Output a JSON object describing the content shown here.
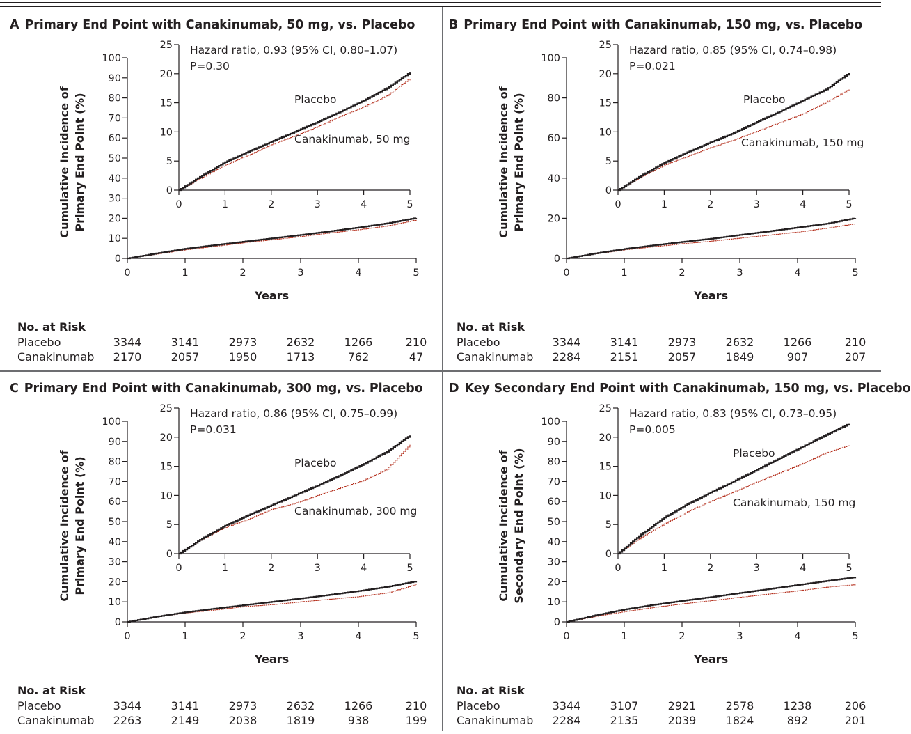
{
  "panels": [
    {
      "letter": "A",
      "title": "Primary End Point with Canakinumab, 50 mg, vs. Placebo",
      "ylabel_lines": [
        "Cumulative Incidence of",
        "Primary End Point (%)"
      ],
      "xlabel": "Years",
      "hazard_text": "Hazard ratio, 0.93 (95% CI, 0.80–1.07)",
      "p_text": "P=0.30",
      "series_labels": [
        "Placebo",
        "Canakinumab, 50 mg"
      ],
      "risk": {
        "title": "No. at Risk",
        "rows": [
          {
            "label": "Placebo",
            "values": [
              "3344",
              "3141",
              "2973",
              "2632",
              "1266",
              "210"
            ]
          },
          {
            "label": "Canakinumab",
            "values": [
              "2170",
              "2057",
              "1950",
              "1713",
              "762",
              "47"
            ]
          }
        ]
      }
    },
    {
      "letter": "B",
      "title": "Primary End Point with Canakinumab, 150 mg, vs. Placebo",
      "ylabel_lines": [
        "Cumulative Incidence of",
        "Primary End Point (%)"
      ],
      "xlabel": "Years",
      "hazard_text": "Hazard ratio, 0.85 (95% CI, 0.74–0.98)",
      "p_text": "P=0.021",
      "series_labels": [
        "Placebo",
        "Canakinumab, 150 mg"
      ],
      "risk": {
        "title": "No. at Risk",
        "rows": [
          {
            "label": "Placebo",
            "values": [
              "3344",
              "3141",
              "2973",
              "2632",
              "1266",
              "210"
            ]
          },
          {
            "label": "Canakinumab",
            "values": [
              "2284",
              "2151",
              "2057",
              "1849",
              "907",
              "207"
            ]
          }
        ]
      }
    },
    {
      "letter": "C",
      "title": "Primary End Point with Canakinumab, 300 mg, vs. Placebo",
      "ylabel_lines": [
        "Cumulative Incidence of",
        "Primary End Point (%)"
      ],
      "xlabel": "Years",
      "hazard_text": "Hazard ratio, 0.86 (95% CI, 0.75–0.99)",
      "p_text": "P=0.031",
      "series_labels": [
        "Placebo",
        "Canakinumab, 300 mg"
      ],
      "risk": {
        "title": "No. at Risk",
        "rows": [
          {
            "label": "Placebo",
            "values": [
              "3344",
              "3141",
              "2973",
              "2632",
              "1266",
              "210"
            ]
          },
          {
            "label": "Canakinumab",
            "values": [
              "2263",
              "2149",
              "2038",
              "1819",
              "938",
              "199"
            ]
          }
        ]
      }
    },
    {
      "letter": "D",
      "title": "Key Secondary End Point with Canakinumab, 150 mg, vs. Placebo",
      "ylabel_lines": [
        "Cumulative Incidence of",
        "Secondary End Point (%)"
      ],
      "xlabel": "Years",
      "hazard_text": "Hazard ratio, 0.83 (95% CI, 0.73–0.95)",
      "p_text": "P=0.005",
      "series_labels": [
        "Placebo",
        "Canakinumab, 150 mg"
      ],
      "risk": {
        "title": "No. at Risk",
        "rows": [
          {
            "label": "Placebo",
            "values": [
              "3344",
              "3107",
              "2921",
              "2578",
              "1238",
              "206"
            ]
          },
          {
            "label": "Canakinumab",
            "values": [
              "2284",
              "2135",
              "2039",
              "1824",
              "892",
              "201"
            ]
          }
        ]
      }
    }
  ],
  "chart_data": [
    {
      "panel": "A",
      "type": "line",
      "xlabel": "Years",
      "ylabel": "Cumulative Incidence of Primary End Point (%)",
      "xlim": [
        0,
        5
      ],
      "yticks": [
        0,
        10,
        20,
        30,
        40,
        50,
        60,
        70,
        80,
        90,
        100
      ],
      "ylim": [
        0,
        100
      ],
      "inset": {
        "xlim": [
          0,
          5
        ],
        "ylim": [
          0,
          25
        ],
        "yticks": [
          0,
          5,
          10,
          15,
          20,
          25
        ]
      },
      "x": [
        0,
        0.5,
        1,
        1.5,
        2,
        2.5,
        3,
        3.5,
        4,
        4.5,
        5
      ],
      "series": [
        {
          "name": "Placebo",
          "color": "#231f20",
          "values": [
            0,
            2.5,
            4.8,
            6.6,
            8.3,
            10.0,
            11.7,
            13.5,
            15.4,
            17.5,
            20.2
          ]
        },
        {
          "name": "Canakinumab, 50 mg",
          "color": "#b5311f",
          "values": [
            0,
            2.2,
            4.3,
            6.0,
            7.8,
            9.3,
            10.9,
            12.7,
            14.3,
            16.2,
            19.2
          ]
        }
      ]
    },
    {
      "panel": "B",
      "type": "line",
      "xlabel": "Years",
      "ylabel": "Cumulative Incidence of Primary End Point (%)",
      "xlim": [
        0,
        5
      ],
      "yticks": [
        0,
        20,
        40,
        60,
        80,
        100
      ],
      "ylim": [
        0,
        100
      ],
      "inset": {
        "xlim": [
          0,
          5
        ],
        "ylim": [
          0,
          25
        ],
        "yticks": [
          0,
          5,
          10,
          15,
          20,
          25
        ]
      },
      "x": [
        0,
        0.5,
        1,
        1.5,
        2,
        2.5,
        3,
        3.5,
        4,
        4.5,
        5
      ],
      "series": [
        {
          "name": "Placebo",
          "color": "#231f20",
          "values": [
            0,
            2.5,
            4.7,
            6.5,
            8.2,
            9.8,
            11.7,
            13.5,
            15.4,
            17.3,
            20.1
          ]
        },
        {
          "name": "Canakinumab, 150 mg",
          "color": "#b5311f",
          "values": [
            0,
            2.3,
            4.3,
            5.8,
            7.3,
            8.6,
            10.1,
            11.6,
            13.1,
            15.1,
            17.3
          ]
        }
      ]
    },
    {
      "panel": "C",
      "type": "line",
      "xlabel": "Years",
      "ylabel": "Cumulative Incidence of Primary End Point (%)",
      "xlim": [
        0,
        5
      ],
      "yticks": [
        0,
        10,
        20,
        30,
        40,
        50,
        60,
        70,
        80,
        90,
        100
      ],
      "ylim": [
        0,
        100
      ],
      "inset": {
        "xlim": [
          0,
          5
        ],
        "ylim": [
          0,
          25
        ],
        "yticks": [
          0,
          5,
          10,
          15,
          20,
          25
        ]
      },
      "x": [
        0,
        0.5,
        1,
        1.5,
        2,
        2.5,
        3,
        3.5,
        4,
        4.5,
        5
      ],
      "series": [
        {
          "name": "Placebo",
          "color": "#231f20",
          "values": [
            0,
            2.6,
            4.8,
            6.6,
            8.3,
            10.0,
            11.7,
            13.5,
            15.4,
            17.5,
            20.3
          ]
        },
        {
          "name": "Canakinumab, 300 mg",
          "color": "#b5311f",
          "values": [
            0,
            2.5,
            4.5,
            5.9,
            7.6,
            8.6,
            10.0,
            11.3,
            12.6,
            14.5,
            18.7
          ]
        }
      ]
    },
    {
      "panel": "D",
      "type": "line",
      "xlabel": "Years",
      "ylabel": "Cumulative Incidence of Secondary End Point (%)",
      "xlim": [
        0,
        5
      ],
      "yticks": [
        0,
        10,
        20,
        30,
        40,
        50,
        60,
        70,
        80,
        90,
        100
      ],
      "ylim": [
        0,
        100
      ],
      "inset": {
        "xlim": [
          0,
          5
        ],
        "ylim": [
          0,
          25
        ],
        "yticks": [
          0,
          5,
          10,
          15,
          20,
          25
        ]
      },
      "x": [
        0,
        0.5,
        1,
        1.5,
        2,
        2.5,
        3,
        3.5,
        4,
        4.5,
        5
      ],
      "series": [
        {
          "name": "Placebo",
          "color": "#231f20",
          "values": [
            0,
            3.3,
            6.2,
            8.5,
            10.5,
            12.4,
            14.4,
            16.4,
            18.4,
            20.4,
            22.3
          ]
        },
        {
          "name": "Canakinumab, 150 mg",
          "color": "#b5311f",
          "values": [
            0,
            2.8,
            5.1,
            7.2,
            9.0,
            10.6,
            12.3,
            13.9,
            15.5,
            17.3,
            18.6
          ]
        }
      ]
    }
  ]
}
